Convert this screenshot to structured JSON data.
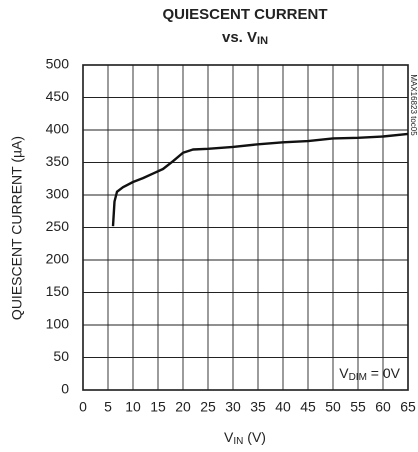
{
  "chart_data": {
    "type": "line",
    "title": "QUIESCENT CURRENT",
    "subtitle": {
      "text": "vs. V",
      "sub": "IN"
    },
    "x_label": {
      "text": "V",
      "sub": "IN",
      "rest": " (V)"
    },
    "y_label": "QUIESCENT CURRENT (µA)",
    "annotation": {
      "text": "V",
      "sub": "DIM",
      "rest": " = 0V"
    },
    "watermark": "MAX16823 toc05",
    "x": [
      6,
      6.3,
      6.8,
      8,
      10,
      12,
      14,
      16,
      18,
      20,
      22,
      25,
      30,
      35,
      40,
      45,
      50,
      55,
      60,
      65
    ],
    "series": [
      {
        "color": "#111111",
        "values": [
          252,
          290,
          305,
          312,
          320,
          326,
          333,
          340,
          352,
          365,
          370,
          371,
          374,
          378,
          381,
          383,
          387,
          388,
          390,
          394
        ]
      }
    ],
    "xlim": [
      0,
      65
    ],
    "xticks": [
      0,
      5,
      10,
      15,
      20,
      25,
      30,
      35,
      40,
      45,
      50,
      55,
      60,
      65
    ],
    "ylim": [
      0,
      500
    ],
    "yticks": [
      0,
      50,
      100,
      150,
      200,
      250,
      300,
      350,
      400,
      450,
      500
    ],
    "grid": true
  }
}
